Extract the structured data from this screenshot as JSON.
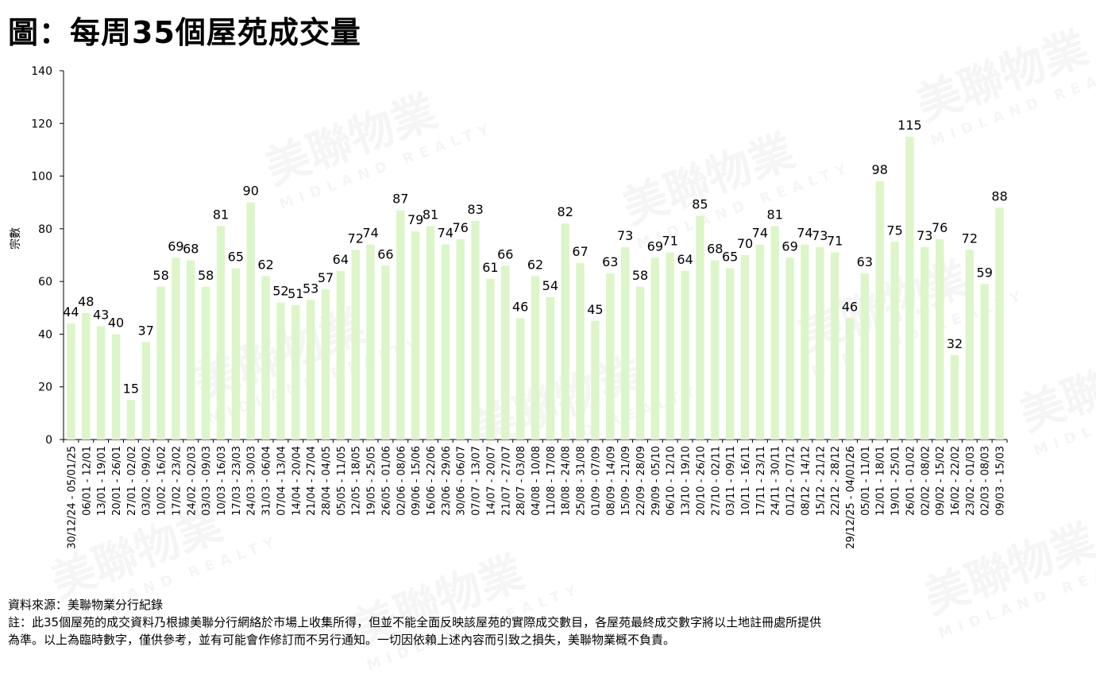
{
  "title": "圖：每周35個屋苑成交量",
  "watermark": {
    "brand": "美聯物業",
    "brand_en": "MIDLAND REALTY"
  },
  "footer": {
    "source": "資料來源：美聯物業分行紀錄",
    "note_line1": "註：此35個屋苑的成交資料乃根據美聯分行網絡於市場上收集所得，但並不能全面反映該屋苑的實際成交數目，各屋苑最終成交數字將以土地註冊處所提供",
    "note_line2": "為準。以上為臨時數字，僅供參考，並有可能會作修訂而不另行通知。一切因依賴上述內容而引致之損失，美聯物業概不負責。"
  },
  "chart_data": {
    "type": "bar",
    "title": "圖：每周35個屋苑成交量",
    "ylabel": "宗數",
    "xlabel": "",
    "ylim": [
      0,
      140
    ],
    "yticks": [
      0,
      20,
      40,
      60,
      80,
      100,
      120,
      140
    ],
    "grid": false,
    "legend": "none",
    "bar_color": "#dcf5c9",
    "categories": [
      "30/12/24 - 05/01/25",
      "06/01 - 12/01",
      "13/01 - 19/01",
      "20/01 - 26/01",
      "27/01 - 02/02",
      "03/02 - 09/02",
      "10/02 - 16/02",
      "17/02 - 23/02",
      "24/02 - 02/03",
      "03/03 - 09/03",
      "10/03 - 16/03",
      "17/03 - 23/03",
      "24/03 - 30/03",
      "31/03 - 06/04",
      "07/04 - 13/04",
      "14/04 - 20/04",
      "21/04 - 27/04",
      "28/04 - 04/05",
      "05/05 - 11/05",
      "12/05 - 18/05",
      "19/05 - 25/05",
      "26/05 - 01/06",
      "02/06 - 08/06",
      "09/06 - 15/06",
      "16/06 - 22/06",
      "23/06 - 29/06",
      "30/06 - 06/07",
      "07/07 - 13/07",
      "14/07 - 20/07",
      "21/07 - 27/07",
      "28/07 - 03/08",
      "04/08 - 10/08",
      "11/08 - 17/08",
      "18/08 - 24/08",
      "25/08 - 31/08",
      "01/09 - 07/09",
      "08/09 - 14/09",
      "15/09 - 21/09",
      "22/09 - 28/09",
      "29/09 - 05/10",
      "06/10 - 12/10",
      "13/10 - 19/10",
      "20/10 - 26/10",
      "27/10 - 02/11",
      "03/11 - 09/11",
      "10/11 - 16/11",
      "17/11 - 23/11",
      "24/11 - 30/11",
      "01/12 - 07/12",
      "08/12 - 14/12",
      "15/12 - 21/12",
      "22/12 - 28/12",
      "29/12/25 - 04/01/26",
      "05/01 - 11/01",
      "12/01 - 18/01",
      "19/01 - 25/01",
      "26/01 - 01/02",
      "02/02 - 08/02",
      "09/02 - 15/02",
      "16/02 - 22/02",
      "23/02 - 01/03",
      "02/03 - 08/03",
      "09/03 - 15/03"
    ],
    "values": [
      44,
      48,
      43,
      40,
      15,
      37,
      58,
      69,
      68,
      58,
      81,
      65,
      90,
      62,
      52,
      51,
      53,
      57,
      64,
      72,
      74,
      66,
      87,
      79,
      81,
      74,
      76,
      83,
      61,
      66,
      46,
      62,
      54,
      82,
      67,
      45,
      63,
      73,
      58,
      69,
      71,
      64,
      85,
      68,
      65,
      70,
      74,
      81,
      69,
      74,
      73,
      71,
      46,
      63,
      98,
      75,
      115,
      73,
      76,
      32,
      72,
      59,
      88
    ]
  }
}
